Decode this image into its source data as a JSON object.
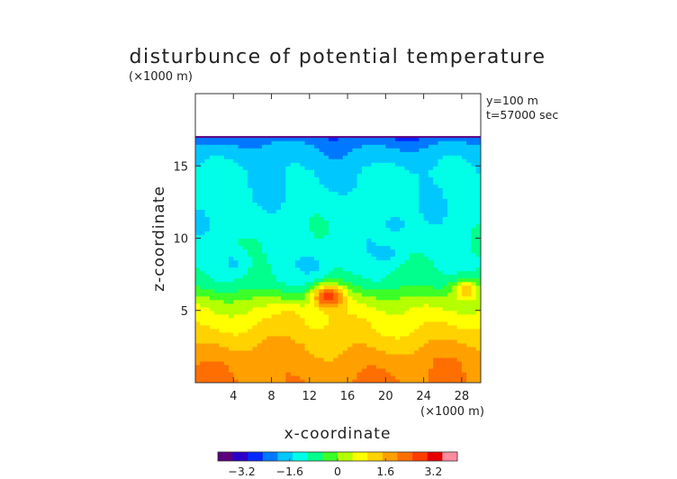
{
  "chart_data": {
    "type": "heatmap",
    "title": "disturbunce of potential temperature",
    "xlabel": "x-coordinate",
    "ylabel": "z-coordinate",
    "x_unit": "(×1000 m)",
    "y_unit": "(×1000 m)",
    "annotations": [
      "y=100 m",
      "t=57000 sec"
    ],
    "xlim": [
      0,
      30
    ],
    "ylim": [
      0,
      20
    ],
    "x_ticks": [
      4,
      8,
      12,
      16,
      20,
      24,
      28
    ],
    "y_ticks": [
      5,
      10,
      15
    ],
    "data_top_z": 17,
    "colorbar": {
      "range": [
        -4,
        4
      ],
      "ticks": [
        -3.2,
        -1.6,
        0,
        1.6,
        3.2
      ],
      "tick_labels": [
        "−3.2",
        "−1.6",
        "0",
        "1.6",
        "3.2"
      ],
      "colors": [
        "#5a007f",
        "#2b00c8",
        "#0028ff",
        "#0078ff",
        "#00c8ff",
        "#00ffe6",
        "#00ff8c",
        "#3cff28",
        "#b4ff00",
        "#ffff00",
        "#ffd200",
        "#ffa000",
        "#ff6e00",
        "#ff3c00",
        "#e60000",
        "#ff8ca0"
      ]
    },
    "profile": [
      {
        "z": 0,
        "v": 2.0
      },
      {
        "z": 1.5,
        "v": 1.8
      },
      {
        "z": 2.5,
        "v": 1.5
      },
      {
        "z": 3.5,
        "v": 1.15
      },
      {
        "z": 4.5,
        "v": 0.85
      },
      {
        "z": 5.5,
        "v": 0.35
      },
      {
        "z": 6.0,
        "v": -0.1
      },
      {
        "z": 7.0,
        "v": -0.9
      },
      {
        "z": 8.5,
        "v": -1.15
      },
      {
        "z": 11.0,
        "v": -1.25
      },
      {
        "z": 13.0,
        "v": -1.35
      },
      {
        "z": 14.5,
        "v": -1.45
      },
      {
        "z": 15.5,
        "v": -1.7
      },
      {
        "z": 16.3,
        "v": -1.95
      },
      {
        "z": 17.0,
        "v": -2.4
      }
    ],
    "features": [
      {
        "x": 14.0,
        "z": 6.0,
        "v": 3.0
      },
      {
        "x": 28.5,
        "z": 6.4,
        "v": 1.3
      },
      {
        "x": 10.0,
        "z": 4.5,
        "v": 1.2
      },
      {
        "x": 12.0,
        "z": 8.2,
        "v": -1.7
      },
      {
        "x": 20.0,
        "z": 9.0,
        "v": -1.6
      },
      {
        "x": 21.0,
        "z": 11.0,
        "v": -1.6
      },
      {
        "x": 4.0,
        "z": 8.3,
        "v": -1.6
      },
      {
        "x": 15.0,
        "z": 14.0,
        "v": -1.7
      }
    ]
  }
}
